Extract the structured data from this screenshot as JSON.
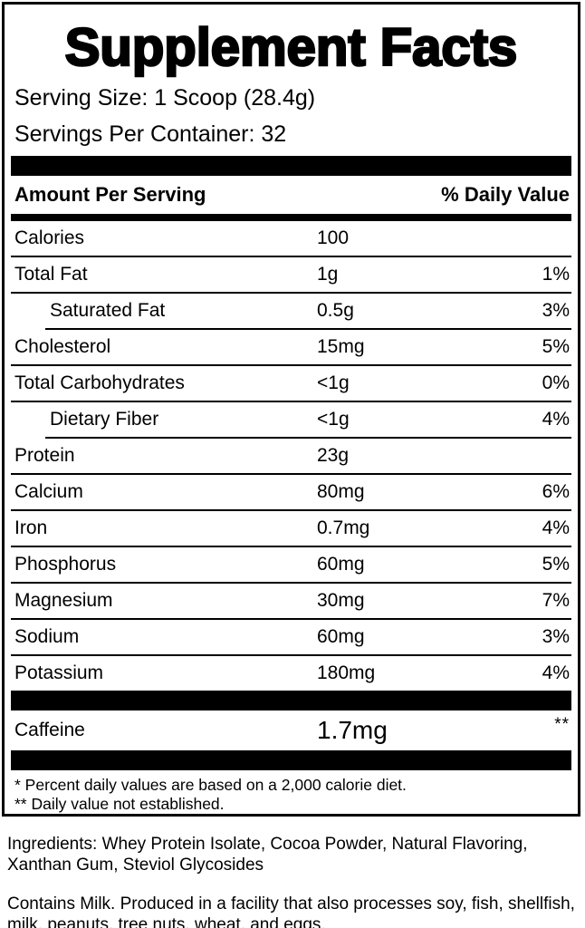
{
  "panel": {
    "title": "Supplement Facts",
    "serving_size": "Serving Size: 1 Scoop (28.4g)",
    "servings_per_container": "Servings Per Container: 32",
    "header": {
      "amount_label": "Amount Per Serving",
      "dv_label": "% Daily Value"
    },
    "footnotes": {
      "line1": "* Percent daily values are based on a 2,000 calorie diet.",
      "line2": "** Daily value not established."
    }
  },
  "nutrients": [
    {
      "name": "Calories",
      "amount": "100",
      "dv": "",
      "indent": false
    },
    {
      "name": "Total Fat",
      "amount": "1g",
      "dv": "1%",
      "indent": false
    },
    {
      "name": "Saturated Fat",
      "amount": "0.5g",
      "dv": "3%",
      "indent": true
    },
    {
      "name": "Cholesterol",
      "amount": "15mg",
      "dv": "5%",
      "indent": false
    },
    {
      "name": "Total Carbohydrates",
      "amount": "<1g",
      "dv": "0%",
      "indent": false
    },
    {
      "name": "Dietary Fiber",
      "amount": "<1g",
      "dv": "4%",
      "indent": true
    },
    {
      "name": "Protein",
      "amount": "23g",
      "dv": "",
      "indent": false
    },
    {
      "name": "Calcium",
      "amount": "80mg",
      "dv": "6%",
      "indent": false
    },
    {
      "name": "Iron",
      "amount": "0.7mg",
      "dv": "4%",
      "indent": false
    },
    {
      "name": "Phosphorus",
      "amount": "60mg",
      "dv": "5%",
      "indent": false
    },
    {
      "name": "Magnesium",
      "amount": "30mg",
      "dv": "7%",
      "indent": false
    },
    {
      "name": "Sodium",
      "amount": "60mg",
      "dv": "3%",
      "indent": false
    },
    {
      "name": "Potassium",
      "amount": "180mg",
      "dv": "4%",
      "indent": false
    }
  ],
  "caffeine": {
    "name": "Caffeine",
    "amount": "1.7mg",
    "dv": "**"
  },
  "ingredients": "Ingredients: Whey Protein Isolate, Cocoa Powder, Natural Flavoring,\nXanthan Gum, Steviol Glycosides",
  "allergen": "Contains Milk. Produced in a facility that also processes soy, fish, shellfish,\nmilk, peanuts, tree nuts, wheat, and eggs.",
  "colors": {
    "ink": "#000000",
    "background": "#ffffff"
  }
}
